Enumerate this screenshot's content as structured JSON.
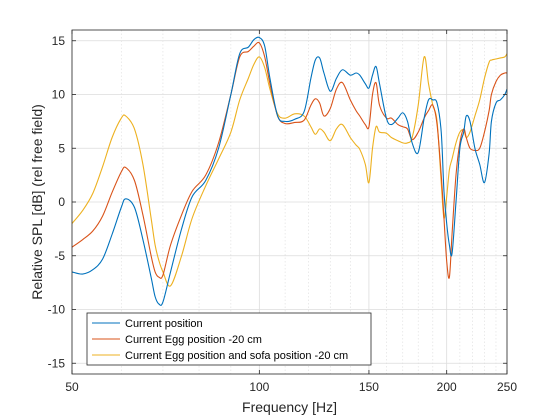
{
  "chart_data": {
    "type": "line",
    "title": "",
    "xlabel": "Frequency [Hz]",
    "ylabel": "Relative SPL [dB] (rel free field)",
    "xscale": "log",
    "xlim": [
      50,
      250
    ],
    "ylim": [
      -16,
      16
    ],
    "xticks": [
      {
        "value": 50,
        "label": "50"
      },
      {
        "value": 100,
        "label": "100"
      },
      {
        "value": 150,
        "label": "150"
      },
      {
        "value": 200,
        "label": "200"
      },
      {
        "value": 250,
        "label": "250"
      }
    ],
    "yticks": [
      {
        "value": -15,
        "label": "-15"
      },
      {
        "value": -10,
        "label": "-10"
      },
      {
        "value": -5,
        "label": "-5"
      },
      {
        "value": 0,
        "label": "0"
      },
      {
        "value": 5,
        "label": "5"
      },
      {
        "value": 10,
        "label": "10"
      },
      {
        "value": 15,
        "label": "15"
      }
    ],
    "grid": true,
    "legend_location": "bottom-left",
    "series": [
      {
        "name": "Current position",
        "color": "#0072BD",
        "x": [
          50,
          52,
          54,
          56,
          58,
          60,
          61,
          63,
          65,
          67,
          68,
          69,
          70,
          72,
          75,
          78,
          82,
          86,
          90,
          93,
          96,
          98,
          100,
          102,
          104,
          107,
          110,
          114,
          118,
          121,
          123,
          125,
          127,
          130,
          133,
          136,
          140,
          143,
          145,
          148,
          150,
          152,
          154,
          156,
          160,
          163,
          167,
          170,
          173,
          176,
          180,
          184,
          187,
          190,
          193,
          196,
          198,
          200,
          202,
          204,
          207,
          210,
          213,
          215,
          218,
          222,
          226,
          230,
          234,
          236,
          240,
          244,
          248,
          250
        ],
        "y": [
          -6.5,
          -6.7,
          -6.3,
          -5.3,
          -3.0,
          -0.5,
          0.3,
          -0.5,
          -3.5,
          -7.0,
          -8.8,
          -9.5,
          -9.3,
          -6.5,
          -2.5,
          0.5,
          2.0,
          5.0,
          10.0,
          13.8,
          14.4,
          15.1,
          15.3,
          14.5,
          11.5,
          8.0,
          7.5,
          7.7,
          8.4,
          11.5,
          13.2,
          13.4,
          12.0,
          10.3,
          11.5,
          12.3,
          11.8,
          12.0,
          11.8,
          11.0,
          10.6,
          11.8,
          12.6,
          11.0,
          7.8,
          7.2,
          7.8,
          8.3,
          7.5,
          5.5,
          4.6,
          7.8,
          9.5,
          9.5,
          9.2,
          6.5,
          1.0,
          -2.0,
          -4.0,
          -4.8,
          0.0,
          5.0,
          6.5,
          8.0,
          7.5,
          5.0,
          3.5,
          1.8,
          4.5,
          7.5,
          9.2,
          9.5,
          10.0,
          10.5
        ]
      },
      {
        "name": "Current Egg position -20 cm",
        "color": "#D95319",
        "x": [
          50,
          52,
          54,
          56,
          58,
          60,
          61,
          63,
          65,
          67,
          68,
          69,
          70,
          72,
          75,
          78,
          82,
          86,
          90,
          93,
          96,
          98,
          100,
          102,
          104,
          107,
          110,
          114,
          118,
          121,
          123,
          125,
          127,
          130,
          133,
          136,
          140,
          143,
          145,
          148,
          150,
          152,
          154,
          156,
          160,
          163,
          167,
          170,
          173,
          176,
          180,
          184,
          187,
          190,
          193,
          196,
          198,
          200,
          202,
          204,
          207,
          210,
          213,
          215,
          218,
          222,
          226,
          230,
          234,
          236,
          240,
          244,
          248,
          250
        ],
        "y": [
          -4.2,
          -3.5,
          -2.7,
          -1.3,
          0.9,
          2.8,
          3.2,
          2.0,
          -1.2,
          -5.0,
          -6.5,
          -7.0,
          -6.8,
          -4.0,
          -1.2,
          1.0,
          2.5,
          5.5,
          10.0,
          13.5,
          14.0,
          14.5,
          14.8,
          13.5,
          11.0,
          8.0,
          7.3,
          7.4,
          7.6,
          9.0,
          9.6,
          9.2,
          8.0,
          8.7,
          10.5,
          11.1,
          9.5,
          8.5,
          8.0,
          7.2,
          7.0,
          10.0,
          11.1,
          9.0,
          7.8,
          7.8,
          7.2,
          7.0,
          6.8,
          5.8,
          6.5,
          7.8,
          8.5,
          9.0,
          7.2,
          2.5,
          -1.5,
          -5.5,
          -7.0,
          -3.0,
          2.5,
          5.5,
          6.8,
          6.0,
          5.0,
          4.8,
          5.0,
          6.5,
          8.5,
          10.0,
          11.2,
          11.8,
          12.0,
          12.0
        ]
      },
      {
        "name": "Current Egg position and sofa position -20 cm",
        "color": "#EDB120",
        "x": [
          50,
          52,
          54,
          56,
          58,
          60,
          61,
          63,
          65,
          67,
          68,
          69,
          70,
          72,
          75,
          78,
          82,
          86,
          90,
          93,
          96,
          98,
          100,
          102,
          104,
          107,
          110,
          114,
          118,
          121,
          123,
          125,
          127,
          130,
          133,
          136,
          140,
          143,
          145,
          148,
          150,
          152,
          154,
          156,
          160,
          163,
          167,
          170,
          173,
          176,
          180,
          184,
          187,
          190,
          193,
          196,
          198,
          200,
          202,
          204,
          207,
          210,
          213,
          215,
          218,
          222,
          226,
          230,
          234,
          236,
          240,
          244,
          248,
          250
        ],
        "y": [
          -2.0,
          -0.8,
          0.8,
          3.3,
          6.0,
          7.8,
          8.0,
          6.8,
          3.5,
          -1.5,
          -4.0,
          -5.5,
          -6.5,
          -7.8,
          -5.0,
          -1.5,
          1.5,
          4.0,
          6.5,
          9.5,
          11.5,
          12.8,
          13.5,
          12.5,
          10.5,
          8.2,
          7.8,
          8.2,
          8.0,
          7.0,
          6.3,
          6.8,
          6.5,
          5.7,
          6.8,
          7.2,
          6.0,
          5.3,
          4.9,
          3.5,
          1.8,
          5.0,
          7.0,
          6.5,
          6.4,
          6.0,
          5.7,
          5.5,
          5.5,
          6.0,
          9.0,
          13.5,
          11.0,
          9.0,
          7.5,
          1.8,
          -1.5,
          0.5,
          3.0,
          4.0,
          5.5,
          6.5,
          6.7,
          6.0,
          6.5,
          8.0,
          9.5,
          11.5,
          13.0,
          13.2,
          13.3,
          13.4,
          13.5,
          13.8
        ]
      }
    ]
  }
}
